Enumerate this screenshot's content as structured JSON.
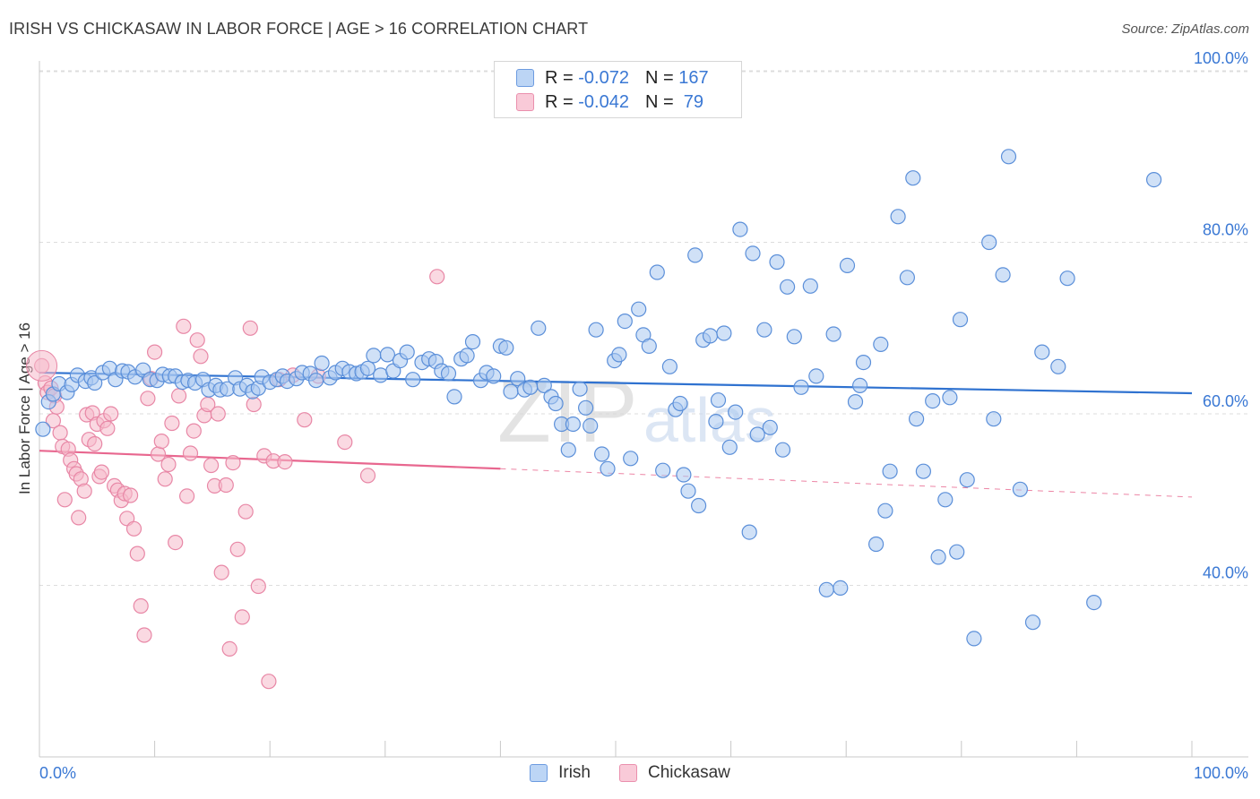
{
  "header": {
    "title": "IRISH VS CHICKASAW IN LABOR FORCE | AGE > 16 CORRELATION CHART",
    "source": "Source: ZipAtlas.com"
  },
  "legend": {
    "r_label": "R =",
    "n_label": "N =",
    "rows": [
      {
        "r": "-0.072",
        "n": "167"
      },
      {
        "r": "-0.042",
        "n": " 79"
      }
    ]
  },
  "colors": {
    "irish_fill": "#a9c8f0",
    "irish_stroke": "#5b8fd9",
    "irish_line": "#2f72d0",
    "chickasaw_fill": "#f6b9cb",
    "chickasaw_stroke": "#e887a6",
    "chickasaw_line": "#e8678f",
    "tick_label": "#3a78d4",
    "grid": "#dddddd"
  },
  "chart_data": {
    "type": "scatter",
    "title": "IRISH VS CHICKASAW IN LABOR FORCE | AGE > 16 CORRELATION CHART",
    "xlabel": "",
    "ylabel": "In Labor Force | Age > 16",
    "xlim": [
      0,
      100
    ],
    "ylim": [
      20,
      100
    ],
    "x_tick_labels": [
      "0.0%",
      "100.0%"
    ],
    "y_ticks": [
      40,
      60,
      80,
      100
    ],
    "y_tick_labels": [
      "40.0%",
      "60.0%",
      "80.0%",
      "100.0%"
    ],
    "grid": true,
    "legend_position": "bottom",
    "watermark": "ZIPatlas",
    "series": [
      {
        "name": "Irish",
        "r": -0.072,
        "n": 167,
        "trend": {
          "x": [
            0,
            100
          ],
          "y": [
            64.8,
            62.4
          ]
        },
        "points": [
          [
            0.3,
            58.2
          ],
          [
            0.8,
            61.4
          ],
          [
            1.2,
            62.3
          ],
          [
            1.7,
            63.5
          ],
          [
            2.4,
            62.5
          ],
          [
            2.8,
            63.4
          ],
          [
            3.3,
            64.5
          ],
          [
            4.0,
            63.8
          ],
          [
            4.5,
            64.2
          ],
          [
            4.8,
            63.6
          ],
          [
            5.5,
            64.8
          ],
          [
            6.1,
            65.3
          ],
          [
            6.6,
            64.0
          ],
          [
            7.2,
            65.0
          ],
          [
            7.7,
            64.9
          ],
          [
            8.3,
            64.3
          ],
          [
            9.0,
            65.1
          ],
          [
            9.6,
            64.0
          ],
          [
            10.2,
            63.9
          ],
          [
            10.7,
            64.6
          ],
          [
            11.3,
            64.4
          ],
          [
            11.8,
            64.4
          ],
          [
            12.4,
            63.7
          ],
          [
            12.9,
            63.9
          ],
          [
            13.5,
            63.6
          ],
          [
            14.2,
            64.0
          ],
          [
            14.7,
            62.8
          ],
          [
            15.3,
            63.3
          ],
          [
            15.7,
            62.8
          ],
          [
            16.3,
            62.9
          ],
          [
            17.0,
            64.2
          ],
          [
            17.4,
            62.9
          ],
          [
            18.0,
            63.3
          ],
          [
            18.5,
            62.6
          ],
          [
            19.0,
            63.0
          ],
          [
            19.3,
            64.3
          ],
          [
            20.0,
            63.7
          ],
          [
            20.6,
            64.0
          ],
          [
            21.1,
            64.4
          ],
          [
            21.5,
            63.8
          ],
          [
            22.3,
            64.1
          ],
          [
            22.8,
            64.8
          ],
          [
            23.5,
            64.7
          ],
          [
            24.0,
            63.9
          ],
          [
            24.5,
            65.9
          ],
          [
            25.2,
            64.2
          ],
          [
            25.7,
            64.8
          ],
          [
            26.3,
            65.3
          ],
          [
            26.9,
            64.9
          ],
          [
            27.5,
            64.7
          ],
          [
            28.0,
            64.9
          ],
          [
            28.5,
            65.3
          ],
          [
            29.0,
            66.8
          ],
          [
            29.6,
            64.5
          ],
          [
            30.2,
            66.9
          ],
          [
            30.7,
            65.0
          ],
          [
            31.3,
            66.2
          ],
          [
            31.9,
            67.2
          ],
          [
            32.4,
            64.0
          ],
          [
            33.2,
            66.0
          ],
          [
            33.8,
            66.4
          ],
          [
            34.4,
            66.1
          ],
          [
            34.9,
            65.0
          ],
          [
            35.5,
            64.7
          ],
          [
            36.0,
            62.0
          ],
          [
            36.6,
            66.4
          ],
          [
            37.1,
            66.8
          ],
          [
            37.6,
            68.4
          ],
          [
            38.3,
            63.9
          ],
          [
            38.8,
            64.8
          ],
          [
            39.4,
            64.4
          ],
          [
            40.0,
            67.9
          ],
          [
            40.5,
            67.7
          ],
          [
            40.9,
            62.6
          ],
          [
            41.5,
            64.1
          ],
          [
            42.1,
            62.8
          ],
          [
            42.6,
            63.1
          ],
          [
            43.3,
            70.0
          ],
          [
            43.8,
            63.3
          ],
          [
            44.4,
            62.0
          ],
          [
            44.8,
            61.2
          ],
          [
            45.3,
            58.8
          ],
          [
            45.9,
            55.8
          ],
          [
            46.3,
            58.8
          ],
          [
            46.9,
            62.9
          ],
          [
            47.4,
            60.7
          ],
          [
            47.8,
            58.6
          ],
          [
            48.3,
            69.8
          ],
          [
            48.8,
            55.3
          ],
          [
            49.3,
            53.6
          ],
          [
            49.9,
            66.2
          ],
          [
            50.3,
            66.9
          ],
          [
            50.8,
            70.8
          ],
          [
            51.3,
            54.8
          ],
          [
            52.0,
            72.2
          ],
          [
            52.4,
            69.2
          ],
          [
            52.9,
            67.9
          ],
          [
            53.6,
            76.5
          ],
          [
            54.1,
            53.4
          ],
          [
            54.7,
            65.5
          ],
          [
            55.2,
            60.5
          ],
          [
            55.6,
            61.2
          ],
          [
            55.9,
            52.9
          ],
          [
            56.3,
            51.0
          ],
          [
            56.9,
            78.5
          ],
          [
            57.2,
            49.3
          ],
          [
            57.6,
            68.6
          ],
          [
            58.2,
            69.1
          ],
          [
            58.7,
            59.1
          ],
          [
            58.9,
            61.6
          ],
          [
            59.4,
            69.4
          ],
          [
            59.9,
            56.1
          ],
          [
            60.4,
            60.2
          ],
          [
            60.8,
            81.5
          ],
          [
            61.6,
            46.2
          ],
          [
            61.9,
            78.7
          ],
          [
            62.3,
            57.6
          ],
          [
            62.9,
            69.8
          ],
          [
            63.4,
            58.4
          ],
          [
            64.0,
            77.7
          ],
          [
            64.5,
            55.8
          ],
          [
            64.9,
            74.8
          ],
          [
            65.5,
            69.0
          ],
          [
            66.1,
            63.1
          ],
          [
            66.9,
            74.9
          ],
          [
            67.4,
            64.4
          ],
          [
            68.3,
            39.5
          ],
          [
            68.9,
            69.3
          ],
          [
            69.5,
            39.7
          ],
          [
            70.1,
            77.3
          ],
          [
            70.8,
            61.4
          ],
          [
            71.2,
            63.3
          ],
          [
            71.5,
            66.0
          ],
          [
            72.6,
            44.8
          ],
          [
            73.0,
            68.1
          ],
          [
            73.4,
            48.7
          ],
          [
            73.8,
            53.3
          ],
          [
            74.5,
            83.0
          ],
          [
            75.3,
            75.9
          ],
          [
            75.8,
            87.5
          ],
          [
            76.1,
            59.4
          ],
          [
            76.7,
            53.3
          ],
          [
            77.5,
            61.5
          ],
          [
            78.0,
            43.3
          ],
          [
            78.6,
            50.0
          ],
          [
            79.0,
            61.9
          ],
          [
            79.6,
            43.9
          ],
          [
            79.9,
            71.0
          ],
          [
            80.5,
            52.3
          ],
          [
            81.1,
            33.8
          ],
          [
            82.4,
            80.0
          ],
          [
            82.8,
            59.4
          ],
          [
            83.6,
            76.2
          ],
          [
            84.1,
            90.0
          ],
          [
            85.1,
            51.2
          ],
          [
            86.2,
            35.7
          ],
          [
            87.0,
            67.2
          ],
          [
            88.4,
            65.5
          ],
          [
            89.2,
            75.8
          ],
          [
            91.5,
            38.0
          ],
          [
            96.7,
            87.3
          ]
        ]
      },
      {
        "name": "Chickasaw",
        "r": -0.042,
        "n": 79,
        "trend": {
          "x": [
            0,
            40
          ],
          "y": [
            55.7,
            53.6
          ]
        },
        "trend_dashed": {
          "x": [
            40,
            100
          ],
          "y": [
            53.6,
            50.3
          ]
        },
        "points": [
          [
            0.2,
            65.6
          ],
          [
            0.5,
            63.6
          ],
          [
            0.7,
            62.5
          ],
          [
            1.0,
            63.0
          ],
          [
            1.2,
            59.2
          ],
          [
            1.3,
            62.1
          ],
          [
            1.5,
            60.8
          ],
          [
            1.8,
            57.8
          ],
          [
            2.0,
            56.2
          ],
          [
            2.2,
            50.0
          ],
          [
            2.5,
            55.9
          ],
          [
            2.7,
            54.6
          ],
          [
            3.0,
            53.6
          ],
          [
            3.2,
            53.0
          ],
          [
            3.4,
            47.9
          ],
          [
            3.6,
            52.4
          ],
          [
            3.9,
            51.0
          ],
          [
            4.1,
            59.9
          ],
          [
            4.3,
            57.0
          ],
          [
            4.6,
            60.1
          ],
          [
            4.8,
            56.5
          ],
          [
            5.0,
            58.8
          ],
          [
            5.2,
            52.7
          ],
          [
            5.4,
            53.2
          ],
          [
            5.6,
            59.2
          ],
          [
            5.9,
            58.3
          ],
          [
            6.2,
            60.0
          ],
          [
            6.5,
            51.6
          ],
          [
            6.8,
            51.1
          ],
          [
            7.1,
            49.9
          ],
          [
            7.4,
            50.7
          ],
          [
            7.6,
            47.8
          ],
          [
            7.9,
            50.5
          ],
          [
            8.2,
            46.6
          ],
          [
            8.5,
            43.7
          ],
          [
            8.8,
            37.6
          ],
          [
            9.1,
            34.2
          ],
          [
            9.4,
            61.8
          ],
          [
            9.7,
            64.1
          ],
          [
            10.0,
            67.2
          ],
          [
            10.3,
            55.3
          ],
          [
            10.6,
            56.8
          ],
          [
            10.9,
            52.4
          ],
          [
            11.2,
            54.1
          ],
          [
            11.5,
            58.9
          ],
          [
            11.8,
            45.0
          ],
          [
            12.1,
            62.1
          ],
          [
            12.5,
            70.2
          ],
          [
            12.8,
            50.4
          ],
          [
            13.1,
            55.4
          ],
          [
            13.4,
            58.0
          ],
          [
            13.7,
            68.6
          ],
          [
            14.0,
            66.7
          ],
          [
            14.3,
            59.8
          ],
          [
            14.6,
            61.1
          ],
          [
            14.9,
            54.0
          ],
          [
            15.2,
            51.6
          ],
          [
            15.5,
            60.0
          ],
          [
            15.8,
            41.5
          ],
          [
            16.2,
            51.7
          ],
          [
            16.5,
            32.6
          ],
          [
            16.8,
            54.3
          ],
          [
            17.2,
            44.2
          ],
          [
            17.6,
            36.3
          ],
          [
            17.9,
            48.6
          ],
          [
            18.3,
            70.0
          ],
          [
            18.6,
            61.1
          ],
          [
            19.0,
            39.9
          ],
          [
            19.5,
            55.1
          ],
          [
            19.9,
            28.8
          ],
          [
            20.3,
            54.5
          ],
          [
            20.8,
            64.0
          ],
          [
            21.3,
            54.4
          ],
          [
            22.0,
            64.5
          ],
          [
            23.0,
            59.3
          ],
          [
            24.2,
            64.4
          ],
          [
            26.5,
            56.7
          ],
          [
            28.5,
            52.8
          ],
          [
            34.5,
            76.0
          ]
        ]
      }
    ]
  }
}
